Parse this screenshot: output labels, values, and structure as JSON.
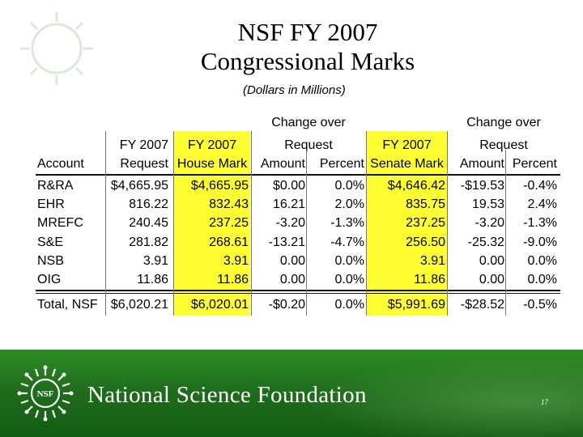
{
  "slide": {
    "title_line1": "NSF FY 2007",
    "title_line2": "Congressional Marks",
    "subtitle": "(Dollars in Millions)",
    "page_number": "17"
  },
  "table": {
    "group_headers": {
      "house_change_line1": "Change over",
      "house_change_line2": "Request",
      "senate_change_line1": "Change over",
      "senate_change_line2": "Request"
    },
    "headers": {
      "account": "Account",
      "request_line1": "FY 2007",
      "request_line2": "Request",
      "house_line1": "FY 2007",
      "house_line2": "House Mark",
      "house_amount": "Amount",
      "house_percent": "Percent",
      "senate_line1": "FY 2007",
      "senate_line2": "Senate Mark",
      "senate_amount": "Amount",
      "senate_percent": "Percent"
    },
    "rows": [
      [
        "R&RA",
        "$4,665.95",
        "$4,665.95",
        "$0.00",
        "0.0%",
        "$4,646.42",
        "-$19.53",
        "-0.4%"
      ],
      [
        "EHR",
        "816.22",
        "832.43",
        "16.21",
        "2.0%",
        "835.75",
        "19.53",
        "2.4%"
      ],
      [
        "MREFC",
        "240.45",
        "237.25",
        "-3.20",
        "-1.3%",
        "237.25",
        "-3.20",
        "-1.3%"
      ],
      [
        "S&E",
        "281.82",
        "268.61",
        "-13.21",
        "-4.7%",
        "256.50",
        "-25.32",
        "-9.0%"
      ],
      [
        "NSB",
        "3.91",
        "3.91",
        "0.00",
        "0.0%",
        "3.91",
        "0.00",
        "0.0%"
      ],
      [
        "OIG",
        "11.86",
        "11.86",
        "0.00",
        "0.0%",
        "11.86",
        "0.00",
        "0.0%"
      ]
    ],
    "total": [
      "Total, NSF",
      "$6,020.21",
      "$6,020.01",
      "-$0.20",
      "0.0%",
      "$5,991.69",
      "-$28.52",
      "-0.5%"
    ]
  },
  "footer": {
    "logo_text": "NSF",
    "organization": "National Science Foundation"
  },
  "colors": {
    "highlight": "#ffff33",
    "footer_green": "#1f6e1c"
  }
}
